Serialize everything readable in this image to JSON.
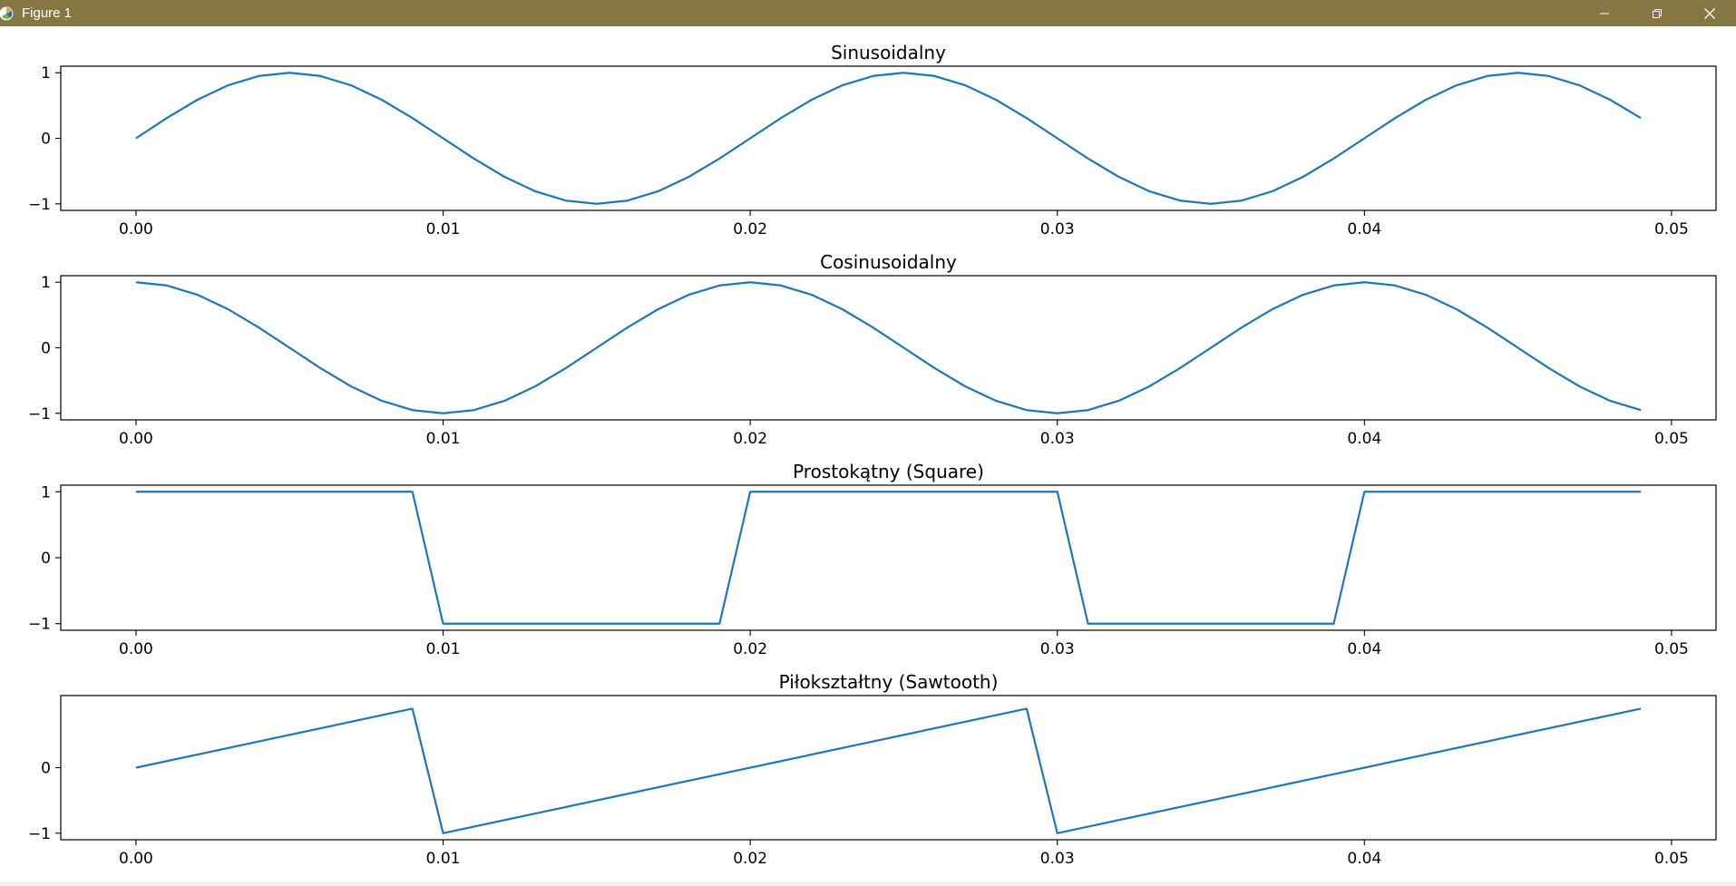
{
  "window": {
    "title": "Figure 1",
    "minimize_icon": "minimize-icon",
    "maximize_icon": "restore-icon",
    "close_icon": "close-icon",
    "app_icon": "matplotlib-logo-icon"
  },
  "line_color": "#1f77b4",
  "chart_data": [
    {
      "type": "line",
      "title": "Sinusoidalny",
      "xlabel": "",
      "ylabel": "",
      "xlim": [
        -0.00245,
        0.05145
      ],
      "ylim": [
        -1.1,
        1.1
      ],
      "xticks": [
        0.0,
        0.01,
        0.02,
        0.03,
        0.04,
        0.05
      ],
      "xtick_labels": [
        "0.00",
        "0.01",
        "0.02",
        "0.03",
        "0.04",
        "0.05"
      ],
      "yticks": [
        1,
        0,
        -1
      ],
      "ytick_labels": [
        "1",
        "0",
        "−1"
      ],
      "x": [
        0.0,
        0.001,
        0.002,
        0.003,
        0.004,
        0.005,
        0.006,
        0.007,
        0.008,
        0.009,
        0.01,
        0.011,
        0.012,
        0.013,
        0.014,
        0.015,
        0.016,
        0.017,
        0.018,
        0.019,
        0.02,
        0.021,
        0.022,
        0.023,
        0.024,
        0.025,
        0.026,
        0.027,
        0.028,
        0.029,
        0.03,
        0.031,
        0.032,
        0.033,
        0.034,
        0.035,
        0.036,
        0.037,
        0.038,
        0.039,
        0.04,
        0.041,
        0.042,
        0.043,
        0.044,
        0.045,
        0.046,
        0.047,
        0.048,
        0.049
      ],
      "y": [
        0,
        0.309,
        0.588,
        0.809,
        0.951,
        1,
        0.951,
        0.809,
        0.588,
        0.309,
        0,
        -0.309,
        -0.588,
        -0.809,
        -0.951,
        -1,
        -0.951,
        -0.809,
        -0.588,
        -0.309,
        0,
        0.309,
        0.588,
        0.809,
        0.951,
        1,
        0.951,
        0.809,
        0.588,
        0.309,
        0,
        -0.309,
        -0.588,
        -0.809,
        -0.951,
        -1,
        -0.951,
        -0.809,
        -0.588,
        -0.309,
        0,
        0.309,
        0.588,
        0.809,
        0.951,
        1,
        0.951,
        0.809,
        0.588,
        0.309
      ],
      "grid": false
    },
    {
      "type": "line",
      "title": "Cosinusoidalny",
      "xlabel": "",
      "ylabel": "",
      "xlim": [
        -0.00245,
        0.05145
      ],
      "ylim": [
        -1.1,
        1.1
      ],
      "xticks": [
        0.0,
        0.01,
        0.02,
        0.03,
        0.04,
        0.05
      ],
      "xtick_labels": [
        "0.00",
        "0.01",
        "0.02",
        "0.03",
        "0.04",
        "0.05"
      ],
      "yticks": [
        1,
        0,
        -1
      ],
      "ytick_labels": [
        "1",
        "0",
        "−1"
      ],
      "x": [
        0.0,
        0.001,
        0.002,
        0.003,
        0.004,
        0.005,
        0.006,
        0.007,
        0.008,
        0.009,
        0.01,
        0.011,
        0.012,
        0.013,
        0.014,
        0.015,
        0.016,
        0.017,
        0.018,
        0.019,
        0.02,
        0.021,
        0.022,
        0.023,
        0.024,
        0.025,
        0.026,
        0.027,
        0.028,
        0.029,
        0.03,
        0.031,
        0.032,
        0.033,
        0.034,
        0.035,
        0.036,
        0.037,
        0.038,
        0.039,
        0.04,
        0.041,
        0.042,
        0.043,
        0.044,
        0.045,
        0.046,
        0.047,
        0.048,
        0.049
      ],
      "y": [
        1,
        0.951,
        0.809,
        0.588,
        0.309,
        0,
        -0.309,
        -0.588,
        -0.809,
        -0.951,
        -1,
        -0.951,
        -0.809,
        -0.588,
        -0.309,
        0,
        0.309,
        0.588,
        0.809,
        0.951,
        1,
        0.951,
        0.809,
        0.588,
        0.309,
        0,
        -0.309,
        -0.588,
        -0.809,
        -0.951,
        -1,
        -0.951,
        -0.809,
        -0.588,
        -0.309,
        0,
        0.309,
        0.588,
        0.809,
        0.951,
        1,
        0.951,
        0.809,
        0.588,
        0.309,
        0,
        -0.309,
        -0.588,
        -0.809,
        -0.951
      ],
      "grid": false
    },
    {
      "type": "line",
      "title": "Prostokątny (Square)",
      "xlabel": "",
      "ylabel": "",
      "xlim": [
        -0.00245,
        0.05145
      ],
      "ylim": [
        -1.1,
        1.1
      ],
      "xticks": [
        0.0,
        0.01,
        0.02,
        0.03,
        0.04,
        0.05
      ],
      "xtick_labels": [
        "0.00",
        "0.01",
        "0.02",
        "0.03",
        "0.04",
        "0.05"
      ],
      "yticks": [
        1,
        0,
        -1
      ],
      "ytick_labels": [
        "1",
        "0",
        "−1"
      ],
      "x": [
        0.0,
        0.009,
        0.01,
        0.019,
        0.02,
        0.03,
        0.031,
        0.039,
        0.04,
        0.049
      ],
      "y": [
        1,
        1,
        -1,
        -1,
        1,
        1,
        -1,
        -1,
        1,
        1
      ],
      "grid": false
    },
    {
      "type": "line",
      "title": "Piłokształtny (Sawtooth)",
      "xlabel": "",
      "ylabel": "",
      "xlim": [
        -0.00245,
        0.05145
      ],
      "ylim": [
        -1.1,
        1.1
      ],
      "xticks": [
        0.0,
        0.01,
        0.02,
        0.03,
        0.04,
        0.05
      ],
      "xtick_labels": [
        "0.00",
        "0.01",
        "0.02",
        "0.03",
        "0.04",
        "0.05"
      ],
      "yticks": [
        0,
        -1
      ],
      "ytick_labels": [
        "0",
        "−1"
      ],
      "x": [
        0.0,
        0.009,
        0.01,
        0.029,
        0.03,
        0.049
      ],
      "y": [
        0,
        0.9,
        -1,
        0.9,
        -1,
        0.9
      ],
      "grid": false
    }
  ]
}
